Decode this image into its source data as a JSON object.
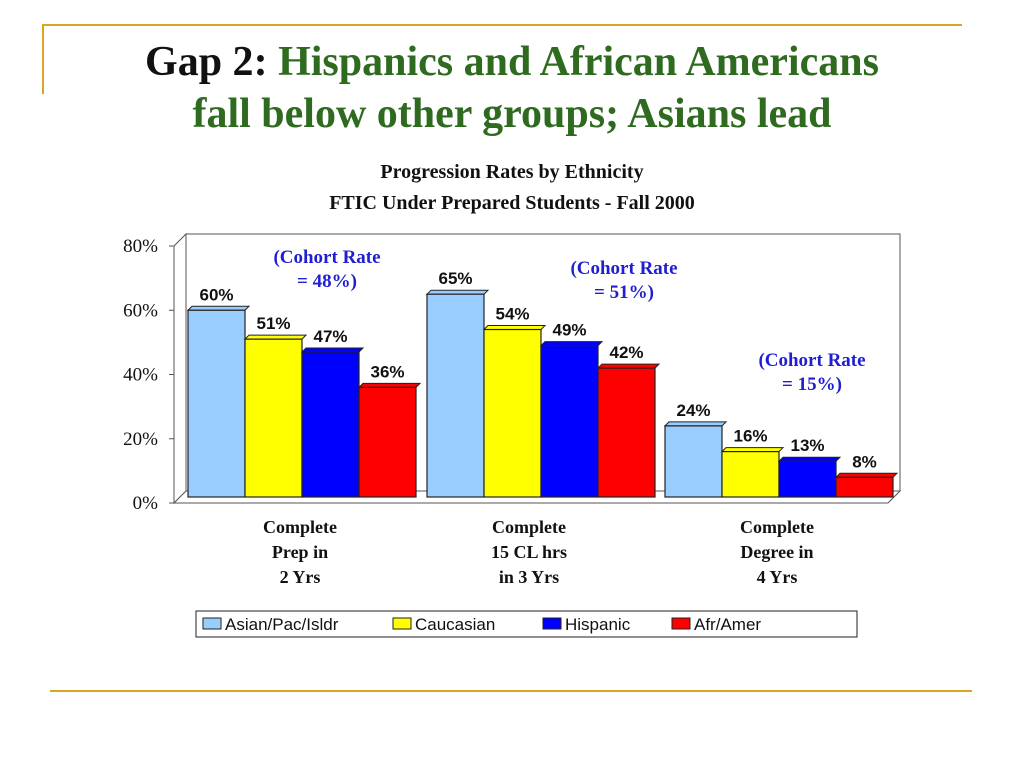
{
  "slide": {
    "title_lead": "Gap 2",
    "title_colon": ":",
    "title_line1": "Hispanics and African Americans",
    "title_line2": "fall below other groups; Asians lead"
  },
  "colors": {
    "title_green": "#2e6b1f",
    "accent_gold": "#d9a522",
    "annotation_blue": "#1f1fd0"
  },
  "chart_data": {
    "type": "bar",
    "title": "Progression Rates by Ethnicity",
    "subtitle": "FTIC Under Prepared Students - Fall 2000",
    "categories": [
      [
        "Complete",
        "Prep in",
        "2 Yrs"
      ],
      [
        "Complete",
        "15 CL hrs",
        "in 3 Yrs"
      ],
      [
        "Complete",
        "Degree in",
        "4 Yrs"
      ]
    ],
    "series": [
      {
        "name": "Asian/Pac/Isldr",
        "color": "#99ccff",
        "values": [
          60,
          65,
          24
        ]
      },
      {
        "name": "Caucasian",
        "color": "#ffff00",
        "values": [
          51,
          54,
          16
        ]
      },
      {
        "name": "Hispanic",
        "color": "#0000ff",
        "values": [
          47,
          49,
          13
        ]
      },
      {
        "name": "Afr/Amer",
        "color": "#ff0000",
        "values": [
          36,
          42,
          8
        ]
      }
    ],
    "ylim": [
      0,
      80
    ],
    "yticks": [
      "0%",
      "20%",
      "40%",
      "60%",
      "80%"
    ],
    "annotations": [
      [
        "(Cohort Rate",
        "= 48%)"
      ],
      [
        "(Cohort  Rate",
        "= 51%)"
      ],
      [
        "(Cohort Rate",
        "= 15%)"
      ]
    ],
    "legend_position": "bottom",
    "grid": false
  }
}
